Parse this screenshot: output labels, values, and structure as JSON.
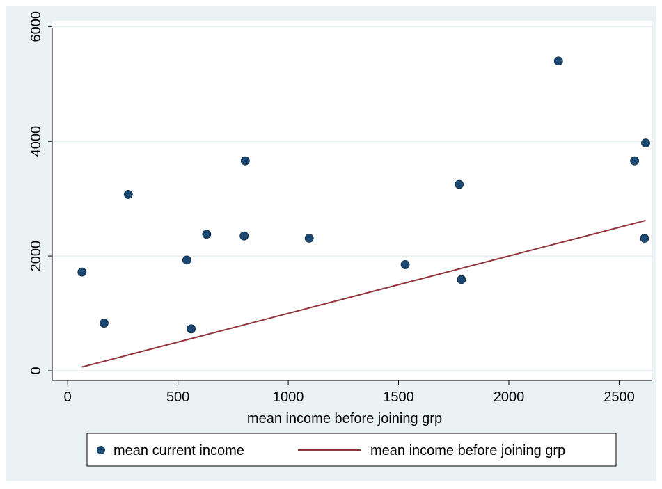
{
  "chart_data": {
    "type": "scatter",
    "title": "",
    "xlabel": "mean income before joining grp",
    "ylabel": "",
    "xlim": [
      -70,
      2650
    ],
    "ylim": [
      -170,
      6100
    ],
    "xticks": [
      0,
      500,
      1000,
      1500,
      2000,
      2500
    ],
    "yticks": [
      0,
      2000,
      4000,
      6000
    ],
    "xtick_labels": [
      "0",
      "500",
      "1000",
      "1500",
      "2000",
      "2500"
    ],
    "ytick_labels": [
      "0",
      "2000",
      "4000",
      "6000"
    ],
    "grid": true,
    "legend_position": "bottom",
    "series": [
      {
        "name": "mean current income",
        "type": "scatter",
        "color": "#1a476f",
        "x": [
          65,
          165,
          275,
          540,
          560,
          630,
          800,
          805,
          1095,
          1530,
          1775,
          1785,
          2225,
          2570,
          2615,
          2620
        ],
        "y": [
          1720,
          830,
          3075,
          1930,
          730,
          2380,
          2350,
          3660,
          2310,
          1850,
          3250,
          1590,
          5400,
          3660,
          2310,
          3970
        ]
      },
      {
        "name": "mean income before joining grp",
        "type": "line",
        "color": "#90353b",
        "x": [
          65,
          2620
        ],
        "y": [
          65,
          2620
        ]
      }
    ]
  }
}
